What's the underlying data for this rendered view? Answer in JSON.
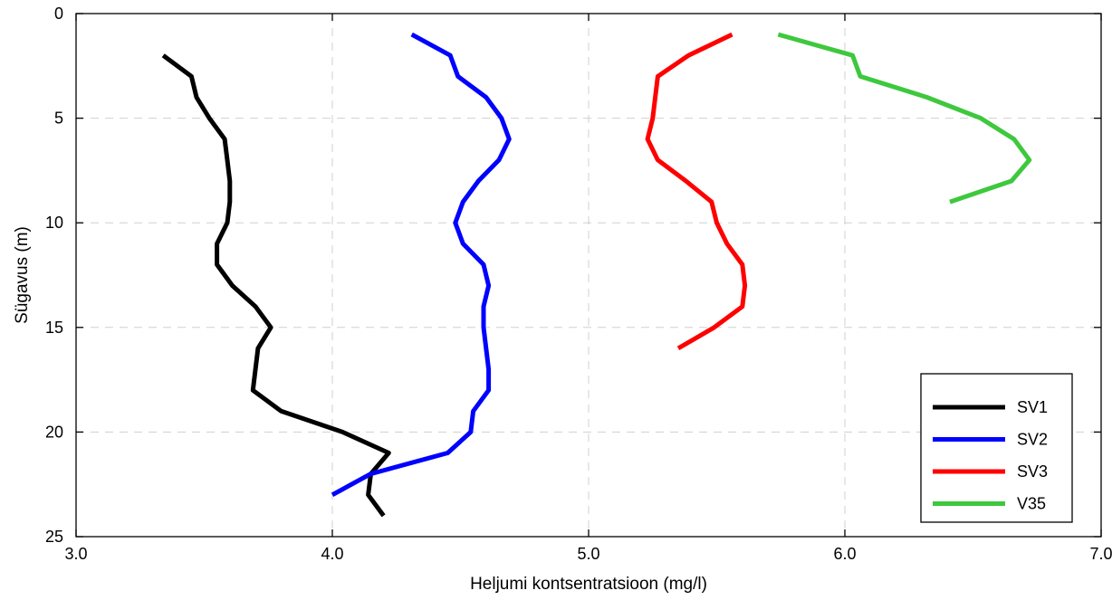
{
  "chart_data": {
    "type": "line",
    "title": "",
    "xlabel": "Heljumi kontsentratsioon (mg/l)",
    "ylabel": "Sügavus (m)",
    "xlim": [
      3.0,
      7.0
    ],
    "ylim": [
      0,
      25
    ],
    "y_inverted": true,
    "x_ticks": [
      "3.0",
      "4.0",
      "5.0",
      "6.0",
      "7.0"
    ],
    "x_tick_values": [
      3.0,
      4.0,
      5.0,
      6.0,
      7.0
    ],
    "y_ticks": [
      "0",
      "5",
      "10",
      "15",
      "20",
      "25"
    ],
    "y_tick_values": [
      0,
      5,
      10,
      15,
      20,
      25
    ],
    "grid": true,
    "legend_position": "bottom-right",
    "series": [
      {
        "name": "SV1",
        "color": "#000000",
        "points": [
          [
            3.34,
            2
          ],
          [
            3.45,
            3
          ],
          [
            3.47,
            4
          ],
          [
            3.52,
            5
          ],
          [
            3.58,
            6
          ],
          [
            3.59,
            7
          ],
          [
            3.6,
            8
          ],
          [
            3.6,
            9
          ],
          [
            3.59,
            10
          ],
          [
            3.55,
            11
          ],
          [
            3.55,
            12
          ],
          [
            3.61,
            13
          ],
          [
            3.7,
            14
          ],
          [
            3.76,
            15
          ],
          [
            3.71,
            16
          ],
          [
            3.69,
            18
          ],
          [
            3.8,
            19
          ],
          [
            4.04,
            20
          ],
          [
            4.22,
            21
          ],
          [
            4.15,
            22
          ],
          [
            4.14,
            23
          ],
          [
            4.2,
            24
          ]
        ]
      },
      {
        "name": "SV2",
        "color": "#0000ff",
        "points": [
          [
            4.31,
            1
          ],
          [
            4.46,
            2
          ],
          [
            4.49,
            3
          ],
          [
            4.6,
            4
          ],
          [
            4.66,
            5
          ],
          [
            4.69,
            6
          ],
          [
            4.65,
            7
          ],
          [
            4.57,
            8
          ],
          [
            4.51,
            9
          ],
          [
            4.48,
            10
          ],
          [
            4.51,
            11
          ],
          [
            4.59,
            12
          ],
          [
            4.61,
            13
          ],
          [
            4.59,
            14
          ],
          [
            4.59,
            15
          ],
          [
            4.6,
            16
          ],
          [
            4.61,
            17
          ],
          [
            4.61,
            18
          ],
          [
            4.55,
            19
          ],
          [
            4.54,
            20
          ],
          [
            4.45,
            21
          ],
          [
            4.15,
            22
          ],
          [
            4.0,
            23
          ]
        ]
      },
      {
        "name": "SV3",
        "color": "#ff0000",
        "points": [
          [
            5.56,
            1
          ],
          [
            5.39,
            2
          ],
          [
            5.27,
            3
          ],
          [
            5.26,
            4
          ],
          [
            5.25,
            5
          ],
          [
            5.23,
            6
          ],
          [
            5.27,
            7
          ],
          [
            5.38,
            8
          ],
          [
            5.48,
            9
          ],
          [
            5.5,
            10
          ],
          [
            5.54,
            11
          ],
          [
            5.6,
            12
          ],
          [
            5.61,
            13
          ],
          [
            5.6,
            14
          ],
          [
            5.49,
            15
          ],
          [
            5.35,
            16
          ]
        ]
      },
      {
        "name": "V35",
        "color": "#3ec83e",
        "points": [
          [
            5.74,
            1
          ],
          [
            6.03,
            2
          ],
          [
            6.06,
            3
          ],
          [
            6.32,
            4
          ],
          [
            6.53,
            5
          ],
          [
            6.66,
            6
          ],
          [
            6.72,
            7
          ],
          [
            6.65,
            8
          ],
          [
            6.41,
            9
          ]
        ]
      }
    ]
  }
}
